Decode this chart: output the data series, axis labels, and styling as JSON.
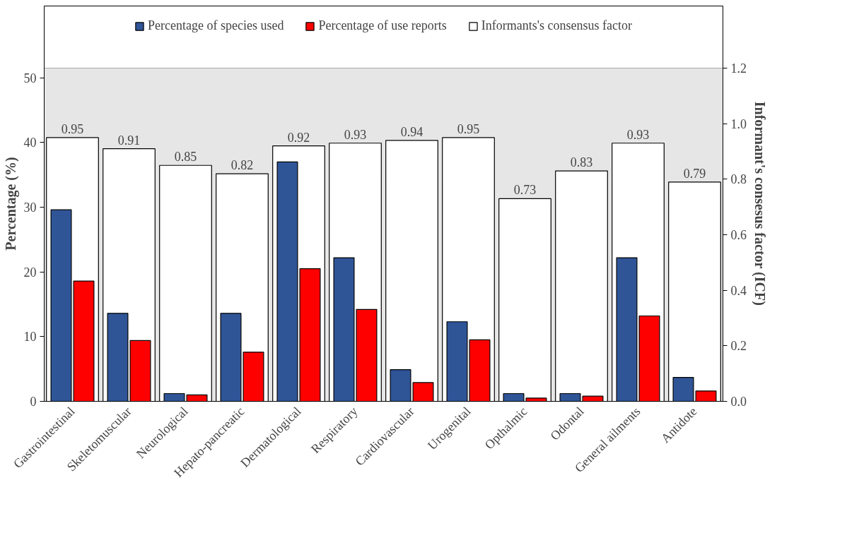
{
  "chart_data": {
    "type": "bar",
    "ylabel": "Percentage (%)",
    "y2label": "Informant's consesus factor (ICF)",
    "categories": [
      "Gastrointestinal",
      "Skeletomuscular",
      "Neurological",
      "Hepato-pancreatic",
      "Dermatological",
      "Respiratory",
      "Cardiovascular",
      "Urogenital",
      "Opthalmic",
      "Odontal",
      "General ailments",
      "Antidote"
    ],
    "series": [
      {
        "name": "Informants's consensus factor",
        "color": "#ffffff",
        "axis": "y2",
        "values": [
          0.95,
          0.91,
          0.85,
          0.82,
          0.92,
          0.93,
          0.94,
          0.95,
          0.73,
          0.83,
          0.93,
          0.79
        ],
        "value_labels": [
          "0.95",
          "0.91",
          "0.85",
          "0.82",
          "0.92",
          "0.93",
          "0.94",
          "0.95",
          "0.73",
          "0.83",
          "0.93",
          "0.79"
        ]
      },
      {
        "name": "Percentage of species used",
        "color": "#2f5597",
        "values": [
          29.6,
          13.6,
          1.2,
          13.6,
          37.0,
          22.2,
          4.9,
          12.3,
          1.2,
          1.2,
          22.2,
          3.7
        ]
      },
      {
        "name": "Percentage of use reports",
        "color": "#ff0000",
        "values": [
          18.6,
          9.4,
          1.0,
          7.6,
          20.5,
          14.2,
          2.9,
          9.5,
          0.5,
          0.8,
          13.2,
          1.6
        ]
      }
    ],
    "ylim": [
      0,
      61.1
    ],
    "yticks": [
      0,
      10,
      20,
      30,
      40,
      50
    ],
    "bands": [
      {
        "axis": "y",
        "from": 0,
        "to": 51.5,
        "color": "#e6e6e6"
      }
    ],
    "y2lim": [
      0,
      1.424
    ],
    "y2ticks": [
      {
        "value": 0,
        "label": "0.0"
      },
      {
        "value": 0.2,
        "label": "0.2"
      },
      {
        "value": 0.4,
        "label": "0.4"
      },
      {
        "value": 0.6,
        "label": "0.6"
      },
      {
        "value": 0.8,
        "label": "0.8"
      },
      {
        "value": 1.0,
        "label": "1.0"
      },
      {
        "value": 1.2,
        "label": "1.2"
      }
    ],
    "grid": false,
    "legend": "top"
  }
}
